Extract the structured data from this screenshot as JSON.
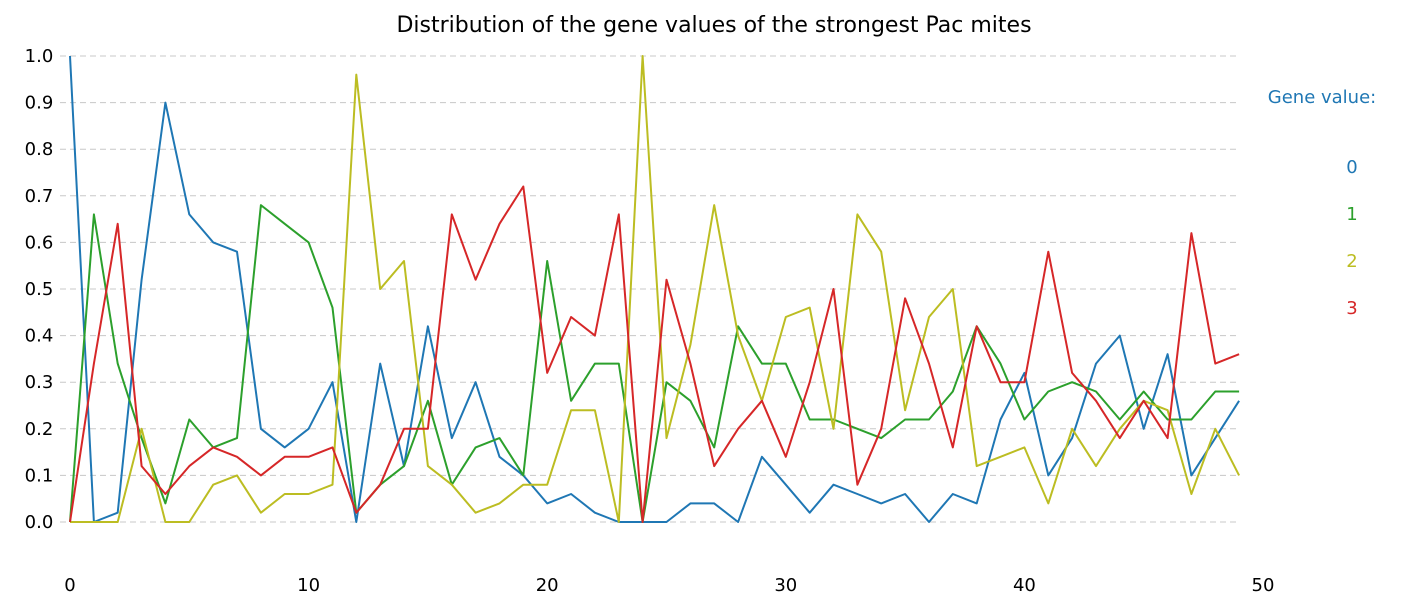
{
  "chart_data": {
    "type": "line",
    "title": "Distribution of the gene values of the strongest Pac mites",
    "xlabel": "",
    "ylabel": "",
    "xlim": [
      0,
      50
    ],
    "ylim": [
      0,
      1.0
    ],
    "x_ticks": [
      "0",
      "10",
      "20",
      "30",
      "40",
      "50"
    ],
    "y_ticks": [
      "0.0",
      "0.1",
      "0.2",
      "0.3",
      "0.4",
      "0.5",
      "0.6",
      "0.7",
      "0.8",
      "0.9",
      "1.0"
    ],
    "grid": "horizontal dashed",
    "legend": {
      "title": "Gene value:",
      "placement": "right",
      "entries": [
        "0",
        "1",
        "2",
        "3"
      ]
    },
    "x": [
      0,
      1,
      2,
      3,
      4,
      5,
      6,
      7,
      8,
      9,
      10,
      11,
      12,
      13,
      14,
      15,
      16,
      17,
      18,
      19,
      20,
      21,
      22,
      23,
      24,
      25,
      26,
      27,
      28,
      29,
      30,
      31,
      32,
      33,
      34,
      35,
      36,
      37,
      38,
      39,
      40,
      41,
      42,
      43,
      44,
      45,
      46,
      47,
      48,
      49
    ],
    "series": [
      {
        "name": "0",
        "color": "#1f77b4",
        "values": [
          1.0,
          0.0,
          0.02,
          0.52,
          0.9,
          0.66,
          0.6,
          0.58,
          0.2,
          0.16,
          0.2,
          0.3,
          0.0,
          0.34,
          0.12,
          0.42,
          0.18,
          0.3,
          0.14,
          0.1,
          0.04,
          0.06,
          0.02,
          0.0,
          0.0,
          0.0,
          0.04,
          0.04,
          0.0,
          0.14,
          0.08,
          0.02,
          0.08,
          0.06,
          0.04,
          0.06,
          0.0,
          0.06,
          0.04,
          0.22,
          0.32,
          0.1,
          0.18,
          0.34,
          0.4,
          0.2,
          0.36,
          0.1,
          0.18,
          0.26
        ]
      },
      {
        "name": "1",
        "color": "#2ca02c",
        "values": [
          0.0,
          0.66,
          0.34,
          0.18,
          0.04,
          0.22,
          0.16,
          0.18,
          0.68,
          0.64,
          0.6,
          0.46,
          0.02,
          0.08,
          0.12,
          0.26,
          0.08,
          0.16,
          0.18,
          0.1,
          0.56,
          0.26,
          0.34,
          0.34,
          0.0,
          0.3,
          0.26,
          0.16,
          0.42,
          0.34,
          0.34,
          0.22,
          0.22,
          0.2,
          0.18,
          0.22,
          0.22,
          0.28,
          0.42,
          0.34,
          0.22,
          0.28,
          0.3,
          0.28,
          0.22,
          0.28,
          0.22,
          0.22,
          0.28,
          0.28
        ]
      },
      {
        "name": "2",
        "color": "#bcbd22",
        "values": [
          0.0,
          0.0,
          0.0,
          0.2,
          0.0,
          0.0,
          0.08,
          0.1,
          0.02,
          0.06,
          0.06,
          0.08,
          0.96,
          0.5,
          0.56,
          0.12,
          0.08,
          0.02,
          0.04,
          0.08,
          0.08,
          0.24,
          0.24,
          0.0,
          1.0,
          0.18,
          0.38,
          0.68,
          0.4,
          0.26,
          0.44,
          0.46,
          0.2,
          0.66,
          0.58,
          0.24,
          0.44,
          0.5,
          0.12,
          0.14,
          0.16,
          0.04,
          0.2,
          0.12,
          0.2,
          0.26,
          0.24,
          0.06,
          0.2,
          0.1
        ]
      },
      {
        "name": "3",
        "color": "#d62728",
        "values": [
          0.0,
          0.34,
          0.64,
          0.12,
          0.06,
          0.12,
          0.16,
          0.14,
          0.1,
          0.14,
          0.14,
          0.16,
          0.02,
          0.08,
          0.2,
          0.2,
          0.66,
          0.52,
          0.64,
          0.72,
          0.32,
          0.44,
          0.4,
          0.66,
          0.0,
          0.52,
          0.34,
          0.12,
          0.2,
          0.26,
          0.14,
          0.3,
          0.5,
          0.08,
          0.2,
          0.48,
          0.34,
          0.16,
          0.42,
          0.3,
          0.3,
          0.58,
          0.32,
          0.26,
          0.18,
          0.26,
          0.18,
          0.62,
          0.34,
          0.36
        ]
      }
    ]
  }
}
